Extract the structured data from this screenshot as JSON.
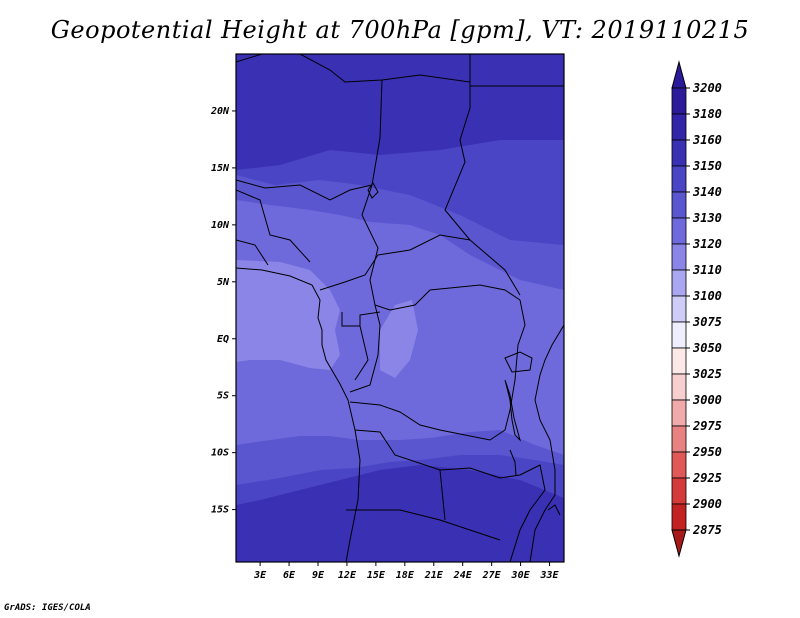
{
  "map": {
    "title": "Geopotential Height at 700hPa [gpm], VT: 2019110215",
    "credit": "GrADS: IGES/COLA",
    "lat_labels": [
      "20N",
      "15N",
      "10N",
      "5N",
      "EQ",
      "5S",
      "10S",
      "15S"
    ],
    "lat_values": [
      20,
      15,
      10,
      5,
      0,
      -5,
      -10,
      -15
    ],
    "lon_labels": [
      "3E",
      "6E",
      "9E",
      "12E",
      "15E",
      "18E",
      "21E",
      "24E",
      "27E",
      "30E",
      "33E"
    ],
    "lon_values": [
      3,
      6,
      9,
      12,
      15,
      18,
      21,
      24,
      27,
      30,
      33
    ],
    "extent": {
      "lon_min": 0.5,
      "lon_max": 34.5,
      "lat_min": -19.6,
      "lat_max": 25
    }
  },
  "colorbar": {
    "labels": [
      "3200",
      "3180",
      "3160",
      "3150",
      "3140",
      "3130",
      "3120",
      "3110",
      "3100",
      "3075",
      "3050",
      "3025",
      "3000",
      "2975",
      "2950",
      "2925",
      "2900",
      "2875"
    ],
    "colors": [
      "#2b1a9a",
      "#3224a8",
      "#3a30b4",
      "#4a45c4",
      "#5a56d0",
      "#6f6adb",
      "#8a85e6",
      "#aaa6f0",
      "#cfcdf7",
      "#efeeff",
      "#fde8e8",
      "#f8cfcf",
      "#f0aaaa",
      "#e88282",
      "#e05858",
      "#d43a3a",
      "#c22222",
      "#a81a1a"
    ]
  }
}
